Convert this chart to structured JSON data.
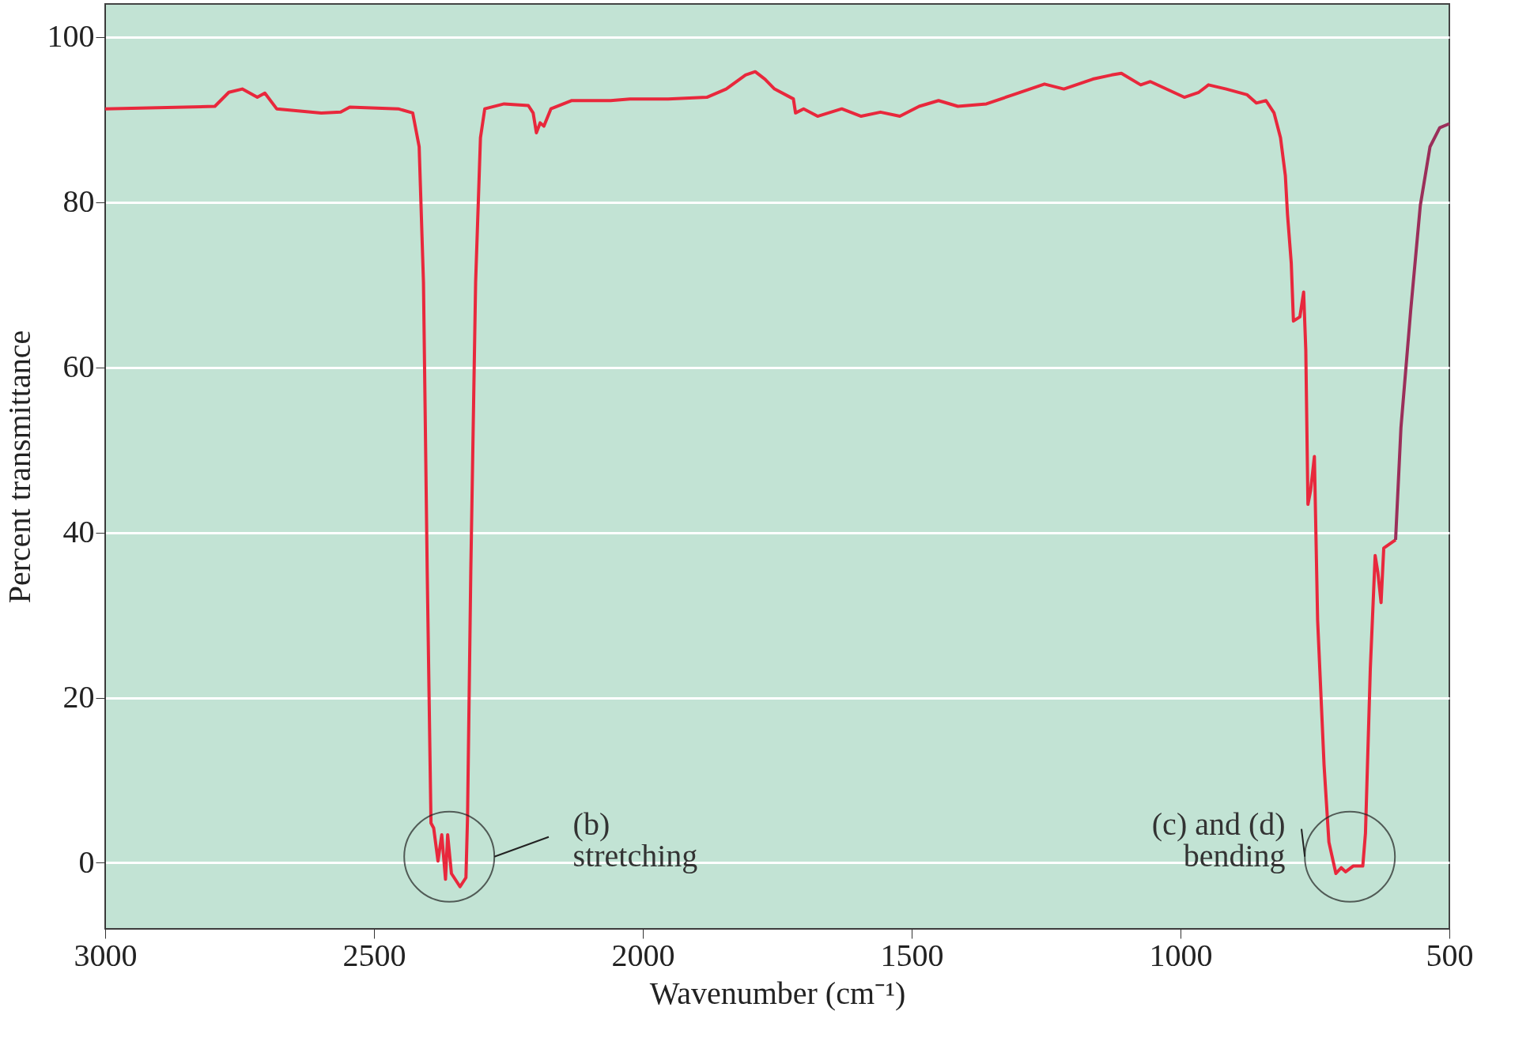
{
  "chart_data": {
    "type": "line",
    "xlabel": "Wavenumber (cm⁻¹)",
    "ylabel": "Percent transmittance",
    "xlim": [
      3000,
      500
    ],
    "xticks": [
      3000,
      2500,
      2000,
      1500,
      1000,
      500
    ],
    "ylim": [
      -8,
      104
    ],
    "yticks": [
      0,
      20,
      40,
      60,
      80,
      100
    ],
    "grid": "y",
    "legend": false,
    "marker": "none",
    "line_style": "solid",
    "series": [
      {
        "color": "#e8283c",
        "x": [
          3000,
          2796,
          2770,
          2745,
          2717,
          2703,
          2681,
          2598,
          2562,
          2545,
          2455,
          2428,
          2416,
          2408,
          2401,
          2394,
          2389,
          2381,
          2374,
          2367,
          2363,
          2356,
          2340,
          2329,
          2326,
          2320,
          2311,
          2302,
          2294,
          2258,
          2213,
          2204,
          2198,
          2191,
          2184,
          2171,
          2132,
          2060,
          2024,
          1953,
          1881,
          1845,
          1809,
          1791,
          1773,
          1755,
          1720,
          1716,
          1701,
          1675,
          1630,
          1594,
          1558,
          1522,
          1486,
          1450,
          1414,
          1361,
          1307,
          1253,
          1217,
          1163,
          1128,
          1110,
          1074,
          1056,
          993,
          966,
          948,
          915,
          876,
          859,
          841,
          826,
          814,
          805,
          801,
          794,
          790,
          778,
          771,
          767,
          763,
          758,
          751,
          745,
          733,
          724,
          711,
          701,
          693,
          679,
          661,
          656,
          647,
          638,
          633,
          627,
          622,
          600
        ],
        "values": [
          91.3,
          91.6,
          93.3,
          93.7,
          92.7,
          93.2,
          91.3,
          90.8,
          90.9,
          91.5,
          91.3,
          90.8,
          86.7,
          70.3,
          35.2,
          4.8,
          4.2,
          0.2,
          3.4,
          -2.0,
          3.4,
          -1.3,
          -2.9,
          -1.8,
          5.6,
          35.2,
          70.3,
          87.8,
          91.3,
          91.9,
          91.7,
          90.8,
          88.4,
          89.6,
          89.2,
          91.3,
          92.3,
          92.3,
          92.5,
          92.5,
          92.7,
          93.7,
          95.4,
          95.8,
          94.9,
          93.7,
          92.5,
          90.8,
          91.3,
          90.4,
          91.3,
          90.4,
          90.9,
          90.4,
          91.6,
          92.3,
          91.6,
          91.9,
          93.1,
          94.3,
          93.7,
          94.9,
          95.4,
          95.6,
          94.2,
          94.6,
          92.7,
          93.3,
          94.2,
          93.7,
          93.0,
          92.0,
          92.3,
          90.8,
          87.8,
          83.2,
          78.5,
          72.6,
          65.6,
          66.1,
          69.1,
          62.1,
          43.4,
          45.1,
          49.2,
          29.4,
          11.8,
          2.5,
          -1.3,
          -0.6,
          -1.1,
          -0.4,
          -0.4,
          3.6,
          23.5,
          37.2,
          35.2,
          31.5,
          38.1,
          39.1
        ]
      },
      {
        "color": "#9b2f5a",
        "x": [
          600,
          590,
          572,
          554,
          536,
          518,
          500
        ],
        "values": [
          39.1,
          52.7,
          66.8,
          79.6,
          86.7,
          89.0,
          89.5
        ]
      }
    ],
    "annotations": [
      "(b)\nstretching",
      "(c) and (d)\nbending"
    ]
  }
}
